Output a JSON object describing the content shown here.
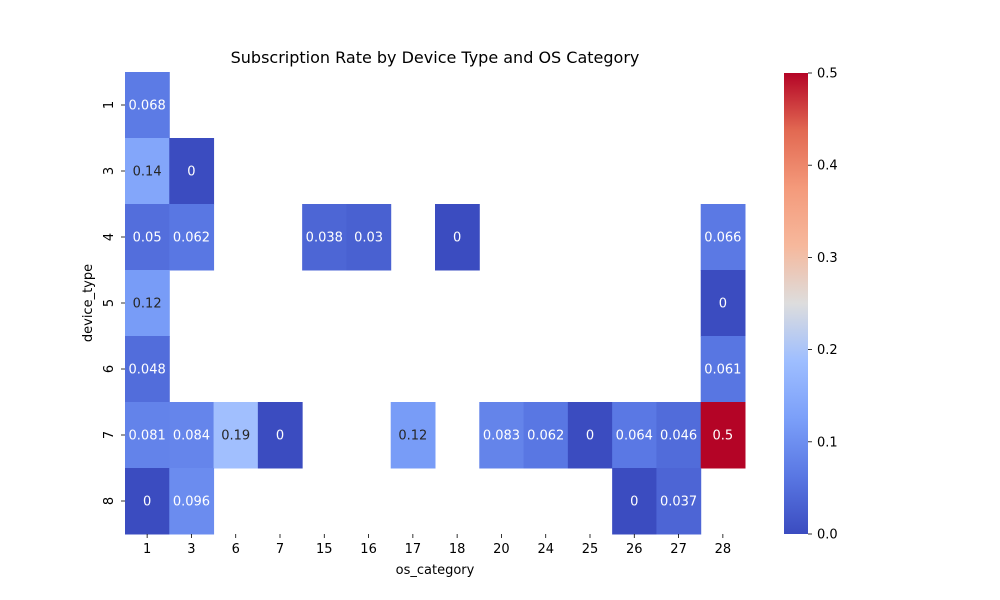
{
  "chart_data": {
    "type": "heatmap",
    "title": "Subscription Rate by Device Type and OS Category",
    "xlabel": "os_category",
    "ylabel": "device_type",
    "x_categories": [
      "1",
      "3",
      "6",
      "7",
      "15",
      "16",
      "17",
      "18",
      "20",
      "24",
      "25",
      "26",
      "27",
      "28"
    ],
    "y_categories": [
      "1",
      "3",
      "4",
      "5",
      "6",
      "7",
      "8"
    ],
    "values": [
      [
        0.068,
        null,
        null,
        null,
        null,
        null,
        null,
        null,
        null,
        null,
        null,
        null,
        null,
        null
      ],
      [
        0.14,
        0,
        null,
        null,
        null,
        null,
        null,
        null,
        null,
        null,
        null,
        null,
        null,
        null
      ],
      [
        0.05,
        0.062,
        null,
        null,
        0.038,
        0.03,
        null,
        0,
        null,
        null,
        null,
        null,
        null,
        0.066
      ],
      [
        0.12,
        null,
        null,
        null,
        null,
        null,
        null,
        null,
        null,
        null,
        null,
        null,
        null,
        0
      ],
      [
        0.048,
        null,
        null,
        null,
        null,
        null,
        null,
        null,
        null,
        null,
        null,
        null,
        null,
        0.061
      ],
      [
        0.081,
        0.084,
        0.19,
        0,
        null,
        null,
        0.12,
        null,
        0.083,
        0.062,
        0,
        0.064,
        0.046,
        0.5
      ],
      [
        0,
        0.096,
        null,
        null,
        null,
        null,
        null,
        null,
        null,
        null,
        null,
        0,
        0.037,
        null
      ]
    ],
    "annotations": [
      [
        "0.068",
        null,
        null,
        null,
        null,
        null,
        null,
        null,
        null,
        null,
        null,
        null,
        null,
        null
      ],
      [
        "0.14",
        "0",
        null,
        null,
        null,
        null,
        null,
        null,
        null,
        null,
        null,
        null,
        null,
        null
      ],
      [
        "0.05",
        "0.062",
        null,
        null,
        "0.038",
        "0.03",
        null,
        "0",
        null,
        null,
        null,
        null,
        null,
        "0.066"
      ],
      [
        "0.12",
        null,
        null,
        null,
        null,
        null,
        null,
        null,
        null,
        null,
        null,
        null,
        null,
        "0"
      ],
      [
        "0.048",
        null,
        null,
        null,
        null,
        null,
        null,
        null,
        null,
        null,
        null,
        null,
        null,
        "0.061"
      ],
      [
        "0.081",
        "0.084",
        "0.19",
        "0",
        null,
        null,
        "0.12",
        null,
        "0.083",
        "0.062",
        "0",
        "0.064",
        "0.046",
        "0.5"
      ],
      [
        "0",
        "0.096",
        null,
        null,
        null,
        null,
        null,
        null,
        null,
        null,
        null,
        "0",
        "0.037",
        null
      ]
    ],
    "colorbar": {
      "min": 0,
      "max": 0.5,
      "colormap": "coolwarm",
      "ticks": [
        0.0,
        0.1,
        0.2,
        0.3,
        0.4,
        0.5
      ],
      "tick_labels": [
        "0.0",
        "0.1",
        "0.2",
        "0.3",
        "0.4",
        "0.5"
      ]
    },
    "grid": false
  }
}
